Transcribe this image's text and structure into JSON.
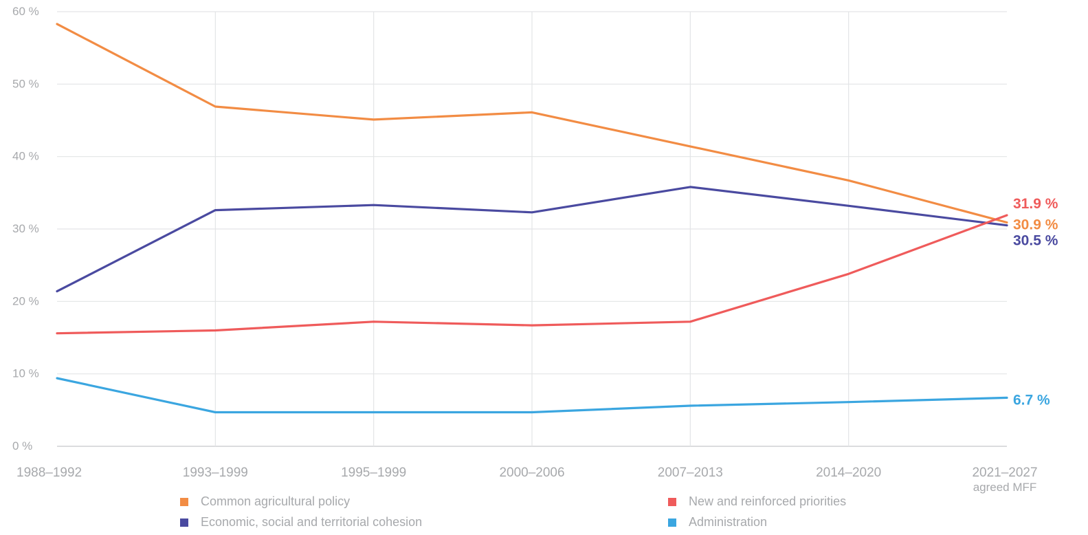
{
  "chart_data": {
    "type": "line",
    "categories": [
      "1988–1992",
      "1993–1999",
      "1995–1999",
      "2000–2006",
      "2007–2013",
      "2014–2020",
      "2021–2027"
    ],
    "category_sublabels": [
      "",
      "",
      "",
      "",
      "",
      "",
      "agreed MFF"
    ],
    "ylim": [
      0,
      60
    ],
    "yticks": [
      0,
      10,
      20,
      30,
      40,
      50,
      60
    ],
    "ytick_labels": [
      "0 %",
      "10 %",
      "20 %",
      "30 %",
      "40 %",
      "50 %",
      "60 %"
    ],
    "grid": true,
    "series": [
      {
        "name": "Common agricultural policy",
        "color": "#f28c44",
        "values": [
          58.3,
          46.9,
          45.1,
          46.1,
          41.4,
          36.7,
          30.9
        ],
        "end_label": "30.9 %"
      },
      {
        "name": "Economic, social and territorial cohesion",
        "color": "#4a4aa0",
        "values": [
          21.4,
          32.6,
          33.3,
          32.3,
          35.8,
          33.2,
          30.5
        ],
        "end_label": "30.5 %"
      },
      {
        "name": "New and reinforced priorities",
        "color": "#ef5b5b",
        "values": [
          15.6,
          16.0,
          17.2,
          16.7,
          17.2,
          23.8,
          31.9
        ],
        "end_label": "31.9 %"
      },
      {
        "name": "Administration",
        "color": "#3ba6e0",
        "values": [
          9.4,
          4.7,
          4.7,
          4.7,
          5.6,
          6.1,
          6.7
        ],
        "end_label": "6.7 %"
      }
    ],
    "legend_placement": "bottom"
  }
}
